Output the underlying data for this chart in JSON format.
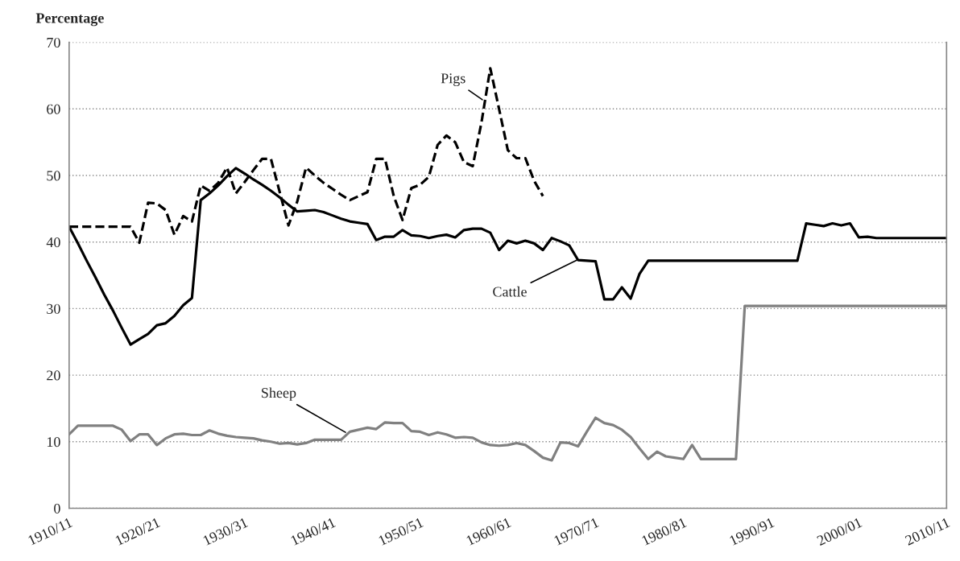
{
  "chart_data": {
    "type": "line",
    "ylabel": "Percentage",
    "categories": [
      "1910/11",
      null,
      null,
      null,
      null,
      null,
      null,
      null,
      null,
      null,
      "1920/21",
      null,
      null,
      null,
      null,
      null,
      null,
      null,
      null,
      null,
      "1930/31",
      null,
      null,
      null,
      null,
      null,
      null,
      null,
      null,
      null,
      "1940/41",
      null,
      null,
      null,
      null,
      null,
      null,
      null,
      null,
      null,
      "1950/51",
      null,
      null,
      null,
      null,
      null,
      null,
      null,
      null,
      null,
      "1960/61",
      null,
      null,
      null,
      null,
      null,
      null,
      null,
      null,
      null,
      "1970/71",
      null,
      null,
      null,
      null,
      null,
      null,
      null,
      null,
      null,
      "1980/81",
      null,
      null,
      null,
      null,
      null,
      null,
      null,
      null,
      null,
      "1990/91",
      null,
      null,
      null,
      null,
      null,
      null,
      null,
      null,
      null,
      "2000/01",
      null,
      null,
      null,
      null,
      null,
      null,
      null,
      null,
      null,
      "2010/11"
    ],
    "ylim": [
      0,
      70
    ],
    "yticks": [
      0,
      10,
      20,
      30,
      40,
      50,
      60,
      70
    ],
    "grid": "y",
    "series": [
      {
        "name": "Cattle",
        "color": "#000000",
        "line_style": "solid",
        "values": [
          42.3,
          39.8,
          37.2,
          34.7,
          32.1,
          29.7,
          27.1,
          24.6,
          25.4,
          26.2,
          27.5,
          27.8,
          28.9,
          30.5,
          31.6,
          46.3,
          47.3,
          48.5,
          49.9,
          51.1,
          50.3,
          49.4,
          48.6,
          47.7,
          46.7,
          45.6,
          44.6,
          44.7,
          44.8,
          44.5,
          44.0,
          43.5,
          43.1,
          42.9,
          42.7,
          40.3,
          40.8,
          40.8,
          41.8,
          41.0,
          40.9,
          40.6,
          40.9,
          41.1,
          40.7,
          41.8,
          42.0,
          42.0,
          41.4,
          38.8,
          40.2,
          39.8,
          40.2,
          39.8,
          38.8,
          40.6,
          40.1,
          39.5,
          37.3,
          37.2,
          37.1,
          31.4,
          31.4,
          33.2,
          31.5,
          35.2,
          37.2,
          37.2,
          37.2,
          37.2,
          37.2,
          37.2,
          37.2,
          37.2,
          37.2,
          37.2,
          37.2,
          37.2,
          37.2,
          37.2,
          37.2,
          37.2,
          37.2,
          37.2,
          42.8,
          42.6,
          42.4,
          42.8,
          42.5,
          42.8,
          40.7,
          40.8,
          40.6,
          40.6,
          40.6,
          40.6,
          40.6,
          40.6,
          40.6,
          40.6,
          40.6
        ]
      },
      {
        "name": "Pigs",
        "color": "#000000",
        "line_style": "dashed",
        "values": [
          42.3,
          42.3,
          42.3,
          42.3,
          42.3,
          42.3,
          42.3,
          42.3,
          39.9,
          45.9,
          45.8,
          44.8,
          41.1,
          43.9,
          43.1,
          48.5,
          47.7,
          48.9,
          51.2,
          47.3,
          49.0,
          50.8,
          52.5,
          52.5,
          47.5,
          42.5,
          46.1,
          51.2,
          50.0,
          48.9,
          48.0,
          47.1,
          46.3,
          46.9,
          47.5,
          52.5,
          52.5,
          46.9,
          43.3,
          48.1,
          48.6,
          49.8,
          54.6,
          56.0,
          55.0,
          52.0,
          51.4,
          58.0,
          66.1,
          60.0,
          53.8,
          52.6,
          52.6,
          49.2,
          46.9,
          null,
          null,
          null,
          null,
          null,
          null,
          null,
          null,
          null,
          null,
          null,
          null,
          null,
          null,
          null,
          null,
          null,
          null,
          null,
          null,
          null,
          null,
          null,
          null,
          null,
          null,
          null,
          null,
          null,
          null,
          null,
          null,
          null,
          null,
          null,
          null,
          null,
          null,
          null,
          null,
          null,
          null,
          null,
          null,
          null,
          null
        ]
      },
      {
        "name": "Sheep",
        "color": "#808080",
        "line_style": "solid",
        "values": [
          11.1,
          12.4,
          12.4,
          12.4,
          12.4,
          12.4,
          11.8,
          10.1,
          11.1,
          11.1,
          9.5,
          10.5,
          11.1,
          11.2,
          11.0,
          11.0,
          11.7,
          11.2,
          10.9,
          10.7,
          10.6,
          10.5,
          10.2,
          10.0,
          9.7,
          9.8,
          9.6,
          9.8,
          10.3,
          10.3,
          10.3,
          10.3,
          11.5,
          11.8,
          12.1,
          11.9,
          12.9,
          12.8,
          12.8,
          11.6,
          11.5,
          11.0,
          11.4,
          11.1,
          10.6,
          10.7,
          10.6,
          9.9,
          9.5,
          9.4,
          9.5,
          9.8,
          9.5,
          8.6,
          7.6,
          7.2,
          9.9,
          9.8,
          9.3,
          11.5,
          13.6,
          12.8,
          12.5,
          11.8,
          10.7,
          9.0,
          7.4,
          8.5,
          7.8,
          7.6,
          7.4,
          9.5,
          7.4,
          7.4,
          7.4,
          7.4,
          7.4,
          30.4,
          30.4,
          30.4,
          30.4,
          30.4,
          30.4,
          30.4,
          30.4,
          30.4,
          30.4,
          30.4,
          30.4,
          30.4,
          30.4,
          30.4,
          30.4,
          30.4,
          30.4,
          30.4,
          30.4,
          30.4,
          30.4,
          30.4,
          30.4
        ]
      }
    ]
  }
}
